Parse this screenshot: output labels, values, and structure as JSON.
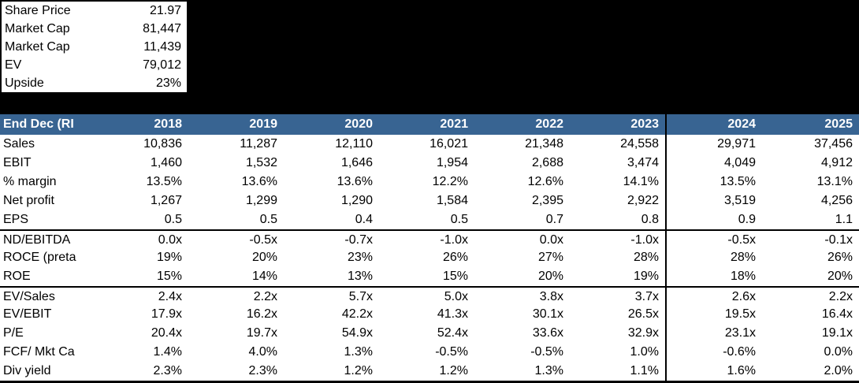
{
  "summary_box": {
    "rows": [
      {
        "label": "Share Price",
        "value": "21.97"
      },
      {
        "label": "Market Cap",
        "value": "81,447"
      },
      {
        "label": "Market Cap",
        "value": "11,439"
      },
      {
        "label": "EV",
        "value": "79,012"
      },
      {
        "label": "Upside",
        "value": "23%"
      }
    ]
  },
  "chart_data": {
    "type": "table",
    "header_label": "End Dec (RI",
    "years": [
      "2018",
      "2019",
      "2020",
      "2021",
      "2022",
      "2023",
      "2024",
      "2025"
    ],
    "forecast_divider_after_column_index": 5,
    "rows": [
      {
        "label": "Sales",
        "divider_above": false,
        "values": [
          "10,836",
          "11,287",
          "12,110",
          "16,021",
          "21,348",
          "24,558",
          "29,971",
          "37,456"
        ]
      },
      {
        "label": "EBIT",
        "divider_above": false,
        "values": [
          "1,460",
          "1,532",
          "1,646",
          "1,954",
          "2,688",
          "3,474",
          "4,049",
          "4,912"
        ]
      },
      {
        "label": "% margin",
        "divider_above": false,
        "values": [
          "13.5%",
          "13.6%",
          "13.6%",
          "12.2%",
          "12.6%",
          "14.1%",
          "13.5%",
          "13.1%"
        ]
      },
      {
        "label": "Net profit",
        "divider_above": false,
        "values": [
          "1,267",
          "1,299",
          "1,290",
          "1,584",
          "2,395",
          "2,922",
          "3,519",
          "4,256"
        ]
      },
      {
        "label": "EPS",
        "divider_above": false,
        "values": [
          "0.5",
          "0.5",
          "0.4",
          "0.5",
          "0.7",
          "0.8",
          "0.9",
          "1.1"
        ]
      },
      {
        "label": "ND/EBITDA",
        "divider_above": true,
        "values": [
          "0.0x",
          "-0.5x",
          "-0.7x",
          "-1.0x",
          "0.0x",
          "-1.0x",
          "-0.5x",
          "-0.1x"
        ]
      },
      {
        "label": "ROCE (preta",
        "divider_above": false,
        "values": [
          "19%",
          "20%",
          "23%",
          "26%",
          "27%",
          "28%",
          "28%",
          "26%"
        ]
      },
      {
        "label": "ROE",
        "divider_above": false,
        "values": [
          "15%",
          "14%",
          "13%",
          "15%",
          "20%",
          "19%",
          "18%",
          "20%"
        ]
      },
      {
        "label": "EV/Sales",
        "divider_above": true,
        "values": [
          "2.4x",
          "2.2x",
          "5.7x",
          "5.0x",
          "3.8x",
          "3.7x",
          "2.6x",
          "2.2x"
        ]
      },
      {
        "label": "EV/EBIT",
        "divider_above": false,
        "values": [
          "17.9x",
          "16.2x",
          "42.2x",
          "41.3x",
          "30.1x",
          "26.5x",
          "19.5x",
          "16.4x"
        ]
      },
      {
        "label": "P/E",
        "divider_above": false,
        "values": [
          "20.4x",
          "19.7x",
          "54.9x",
          "52.4x",
          "33.6x",
          "32.9x",
          "23.1x",
          "19.1x"
        ]
      },
      {
        "label": "FCF/ Mkt Ca",
        "divider_above": false,
        "values": [
          "1.4%",
          "4.0%",
          "1.3%",
          "-0.5%",
          "-0.5%",
          "1.0%",
          "-0.6%",
          "0.0%"
        ]
      },
      {
        "label": "Div yield",
        "divider_above": false,
        "values": [
          "2.3%",
          "2.3%",
          "1.2%",
          "1.2%",
          "1.3%",
          "1.1%",
          "1.6%",
          "2.0%"
        ]
      }
    ]
  },
  "colors": {
    "background": "#000000",
    "table_background": "#FFFFFF",
    "header_background": "#386492",
    "header_text": "#FFFFFF",
    "body_text": "#000000",
    "divider": "#000000"
  }
}
